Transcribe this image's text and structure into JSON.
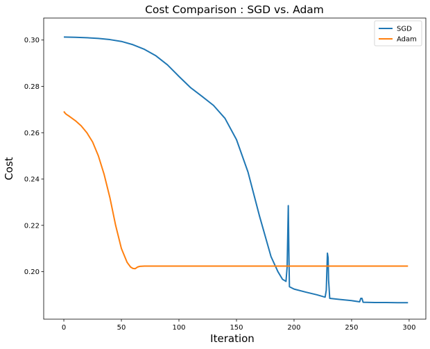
{
  "chart_data": {
    "type": "line",
    "title": "Cost Comparison : SGD vs. Adam",
    "xlabel": "Iteration",
    "ylabel": "Cost",
    "xlim": [
      -17.5,
      314.5
    ],
    "ylim": [
      0.1795,
      0.3095
    ],
    "xticks": [
      0,
      50,
      100,
      150,
      200,
      250,
      300
    ],
    "xtick_labels": [
      "0",
      "50",
      "100",
      "150",
      "200",
      "250",
      "300"
    ],
    "yticks": [
      0.2,
      0.22,
      0.24,
      0.26,
      0.28,
      0.3
    ],
    "ytick_labels": [
      "0.20",
      "0.22",
      "0.24",
      "0.26",
      "0.28",
      "0.30"
    ],
    "grid": false,
    "legend_position": "top-right",
    "series": [
      {
        "name": "SGD",
        "color": "#1f77b4",
        "points": [
          [
            0,
            0.3013
          ],
          [
            10,
            0.3012
          ],
          [
            20,
            0.301
          ],
          [
            30,
            0.3007
          ],
          [
            40,
            0.3002
          ],
          [
            50,
            0.2994
          ],
          [
            60,
            0.298
          ],
          [
            70,
            0.296
          ],
          [
            80,
            0.2932
          ],
          [
            90,
            0.2893
          ],
          [
            100,
            0.2843
          ],
          [
            110,
            0.2795
          ],
          [
            120,
            0.2757
          ],
          [
            130,
            0.2718
          ],
          [
            140,
            0.2662
          ],
          [
            150,
            0.257
          ],
          [
            160,
            0.243
          ],
          [
            170,
            0.224
          ],
          [
            180,
            0.2065
          ],
          [
            186,
            0.2
          ],
          [
            190,
            0.1967
          ],
          [
            193,
            0.1958
          ],
          [
            194,
            0.202
          ],
          [
            195,
            0.2285
          ],
          [
            195.6,
            0.205
          ],
          [
            196,
            0.1935
          ],
          [
            200,
            0.1925
          ],
          [
            210,
            0.1912
          ],
          [
            220,
            0.19
          ],
          [
            227,
            0.189
          ],
          [
            228,
            0.192
          ],
          [
            229,
            0.208
          ],
          [
            229.6,
            0.206
          ],
          [
            230,
            0.1965
          ],
          [
            231,
            0.1885
          ],
          [
            240,
            0.188
          ],
          [
            250,
            0.1875
          ],
          [
            257,
            0.187
          ],
          [
            258,
            0.1885
          ],
          [
            259,
            0.1885
          ],
          [
            260,
            0.1868
          ],
          [
            270,
            0.1867
          ],
          [
            280,
            0.1867
          ],
          [
            290,
            0.1866
          ],
          [
            299,
            0.1866
          ]
        ]
      },
      {
        "name": "Adam",
        "color": "#ff7f0e",
        "points": [
          [
            0,
            0.2692
          ],
          [
            1,
            0.2685
          ],
          [
            2,
            0.268
          ],
          [
            5,
            0.267
          ],
          [
            10,
            0.2652
          ],
          [
            15,
            0.263
          ],
          [
            20,
            0.26
          ],
          [
            25,
            0.256
          ],
          [
            30,
            0.25
          ],
          [
            35,
            0.242
          ],
          [
            40,
            0.232
          ],
          [
            45,
            0.22
          ],
          [
            50,
            0.21
          ],
          [
            55,
            0.204
          ],
          [
            58,
            0.202
          ],
          [
            60,
            0.2014
          ],
          [
            62,
            0.2013
          ],
          [
            64,
            0.202
          ],
          [
            66,
            0.2023
          ],
          [
            70,
            0.2024
          ],
          [
            100,
            0.2024
          ],
          [
            150,
            0.2024
          ],
          [
            200,
            0.2024
          ],
          [
            250,
            0.2024
          ],
          [
            299,
            0.2024
          ]
        ]
      }
    ]
  }
}
